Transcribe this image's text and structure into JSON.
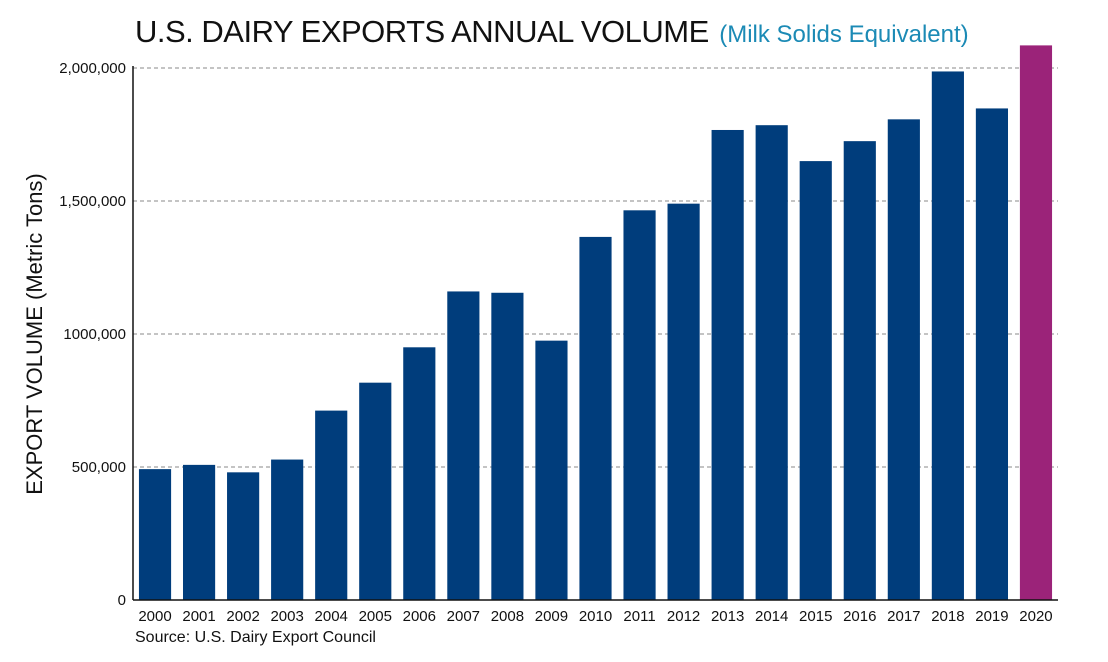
{
  "chart_data": {
    "type": "bar",
    "title": "U.S. DAIRY EXPORTS ANNUAL VOLUME",
    "subtitle": "(Milk Solids Equivalent)",
    "ylabel": "EXPORT VOLUME (Metric Tons)",
    "xlabel": "",
    "source": "Source: U.S. Dairy Export Council",
    "ylim": [
      0,
      2000000
    ],
    "yticks": [
      {
        "value": 0,
        "label": "0"
      },
      {
        "value": 500000,
        "label": "500,000"
      },
      {
        "value": 1000000,
        "label": "1000,000"
      },
      {
        "value": 1500000,
        "label": "1,500,000"
      },
      {
        "value": 2000000,
        "label": "2,000,000"
      }
    ],
    "grid": true,
    "categories": [
      "2000",
      "2001",
      "2002",
      "2003",
      "2004",
      "2005",
      "2006",
      "2007",
      "2008",
      "2009",
      "2010",
      "2011",
      "2012",
      "2013",
      "2014",
      "2015",
      "2016",
      "2017",
      "2018",
      "2019",
      "2020"
    ],
    "values": [
      492000,
      508000,
      480000,
      528000,
      712000,
      817000,
      950000,
      1160000,
      1155000,
      975000,
      1365000,
      1465000,
      1490000,
      1767000,
      1785000,
      1650000,
      1725000,
      1807000,
      1987000,
      1848000,
      2085000
    ],
    "colors": {
      "default": "#003d7c",
      "highlight": "#9b2379",
      "subtitle": "#1b8ab5",
      "grid": "#8a8a8a"
    },
    "highlight_index": 20
  }
}
